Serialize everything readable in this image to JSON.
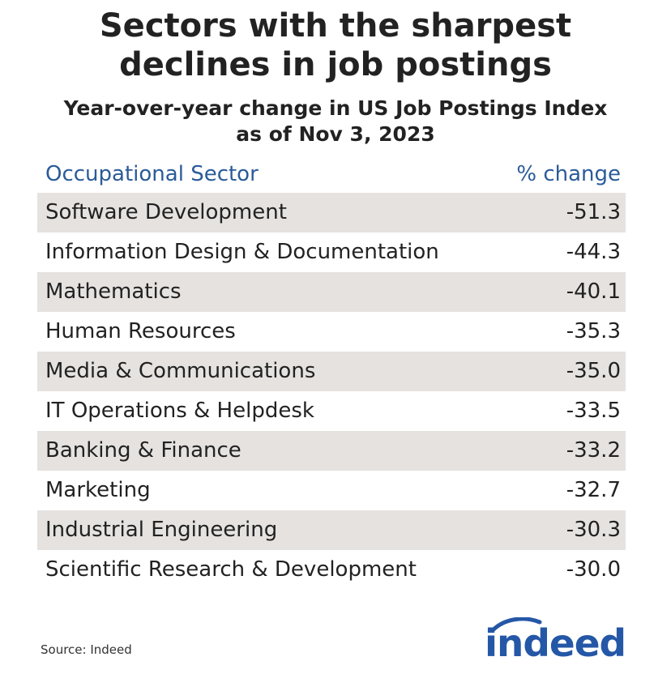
{
  "chart_data": {
    "type": "table",
    "title": [
      "Sectors with the sharpest",
      "declines in job postings"
    ],
    "subtitle": [
      "Year-over-year change in US Job Postings Index",
      "as of Nov 3, 2023"
    ],
    "columns": [
      "Occupational Sector",
      "% change"
    ],
    "rows": [
      {
        "sector": "Software Development",
        "change": "-51.3"
      },
      {
        "sector": "Information Design & Documentation",
        "change": "-44.3"
      },
      {
        "sector": "Mathematics",
        "change": "-40.1"
      },
      {
        "sector": "Human Resources",
        "change": "-35.3"
      },
      {
        "sector": "Media & Communications",
        "change": "-35.0"
      },
      {
        "sector": "IT Operations & Helpdesk",
        "change": "-33.5"
      },
      {
        "sector": "Banking & Finance",
        "change": "-33.2"
      },
      {
        "sector": "Marketing",
        "change": "-32.7"
      },
      {
        "sector": "Industrial Engineering",
        "change": "-30.3"
      },
      {
        "sector": "Scientific Research & Development",
        "change": "-30.0"
      }
    ],
    "source": "Source: Indeed"
  },
  "brand": {
    "logo_text": "indeed",
    "color": "#2557a7"
  },
  "colors": {
    "header_text": "#2a5b99",
    "row_shade": "#e5e2e0"
  }
}
